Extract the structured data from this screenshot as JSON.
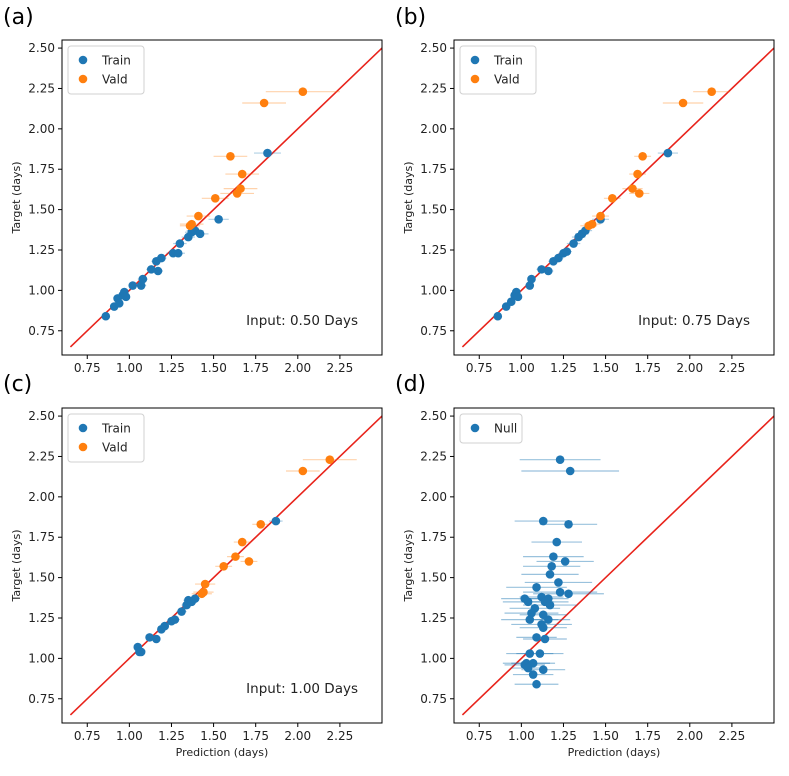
{
  "figure": {
    "colors": {
      "train": "#1f77b4",
      "vald": "#ff7f0e",
      "null": "#1f77b4",
      "identity": "#e8231b",
      "frame": "#000000"
    }
  },
  "chart_data": [
    {
      "type": "scatter",
      "panel_label": "(a)",
      "xlabel": "",
      "ylabel": "Target (days)",
      "xlim": [
        0.6,
        2.5
      ],
      "ylim": [
        0.6,
        2.55
      ],
      "xticks": [
        0.75,
        1.0,
        1.25,
        1.5,
        1.75,
        2.0,
        2.25
      ],
      "yticks": [
        0.75,
        1.0,
        1.25,
        1.5,
        1.75,
        2.0,
        2.25,
        2.5
      ],
      "xtick_labels": [
        "0.75",
        "1.00",
        "1.25",
        "1.50",
        "1.75",
        "2.00",
        "2.25"
      ],
      "ytick_labels": [
        "0.75",
        "1.00",
        "1.25",
        "1.50",
        "1.75",
        "2.00",
        "2.25",
        "2.50"
      ],
      "annotation": "Input: 0.50 Days",
      "identity_line": [
        0.65,
        2.5
      ],
      "legend": [
        "Train",
        "Vald"
      ],
      "legend_position": "top-left",
      "series": [
        {
          "name": "Train",
          "points": [
            [
              0.86,
              0.84,
              0.0
            ],
            [
              0.91,
              0.9,
              0.02
            ],
            [
              0.93,
              0.95,
              0.02
            ],
            [
              0.94,
              0.92,
              0.02
            ],
            [
              0.96,
              0.97,
              0.02
            ],
            [
              0.97,
              0.99,
              0.02
            ],
            [
              0.98,
              0.96,
              0.02
            ],
            [
              1.02,
              1.03,
              0.02
            ],
            [
              1.07,
              1.03,
              0.03
            ],
            [
              1.08,
              1.07,
              0.03
            ],
            [
              1.13,
              1.13,
              0.03
            ],
            [
              1.16,
              1.18,
              0.03
            ],
            [
              1.17,
              1.12,
              0.03
            ],
            [
              1.19,
              1.2,
              0.03
            ],
            [
              1.26,
              1.23,
              0.04
            ],
            [
              1.29,
              1.23,
              0.04
            ],
            [
              1.3,
              1.29,
              0.04
            ],
            [
              1.35,
              1.33,
              0.04
            ],
            [
              1.37,
              1.36,
              0.04
            ],
            [
              1.39,
              1.37,
              0.05
            ],
            [
              1.42,
              1.35,
              0.05
            ],
            [
              1.53,
              1.44,
              0.06
            ],
            [
              1.82,
              1.85,
              0.08
            ]
          ]
        },
        {
          "name": "Vald",
          "points": [
            [
              1.36,
              1.4,
              0.06
            ],
            [
              1.37,
              1.41,
              0.07
            ],
            [
              1.41,
              1.46,
              0.07
            ],
            [
              1.51,
              1.57,
              0.08
            ],
            [
              1.6,
              1.83,
              0.1
            ],
            [
              1.64,
              1.6,
              0.1
            ],
            [
              1.66,
              1.63,
              0.1
            ],
            [
              1.67,
              1.72,
              0.1
            ],
            [
              1.8,
              2.16,
              0.13
            ],
            [
              2.03,
              2.23,
              0.22
            ]
          ]
        }
      ]
    },
    {
      "type": "scatter",
      "panel_label": "(b)",
      "xlabel": "",
      "ylabel": "Target (days)",
      "xlim": [
        0.6,
        2.5
      ],
      "ylim": [
        0.6,
        2.55
      ],
      "xticks": [
        0.75,
        1.0,
        1.25,
        1.5,
        1.75,
        2.0,
        2.25
      ],
      "yticks": [
        0.75,
        1.0,
        1.25,
        1.5,
        1.75,
        2.0,
        2.25,
        2.5
      ],
      "xtick_labels": [
        "0.75",
        "1.00",
        "1.25",
        "1.50",
        "1.75",
        "2.00",
        "2.25"
      ],
      "ytick_labels": [
        "0.75",
        "1.00",
        "1.25",
        "1.50",
        "1.75",
        "2.00",
        "2.25",
        "2.50"
      ],
      "annotation": "Input: 0.75 Days",
      "identity_line": [
        0.65,
        2.5
      ],
      "legend": [
        "Train",
        "Vald"
      ],
      "legend_position": "top-left",
      "series": [
        {
          "name": "Train",
          "points": [
            [
              0.86,
              0.84,
              0.0
            ],
            [
              0.91,
              0.9,
              0.02
            ],
            [
              0.94,
              0.93,
              0.02
            ],
            [
              0.96,
              0.97,
              0.02
            ],
            [
              0.97,
              0.99,
              0.02
            ],
            [
              0.98,
              0.96,
              0.02
            ],
            [
              1.05,
              1.03,
              0.02
            ],
            [
              1.06,
              1.07,
              0.02
            ],
            [
              1.12,
              1.13,
              0.03
            ],
            [
              1.16,
              1.12,
              0.03
            ],
            [
              1.19,
              1.18,
              0.03
            ],
            [
              1.22,
              1.2,
              0.03
            ],
            [
              1.25,
              1.23,
              0.03
            ],
            [
              1.27,
              1.24,
              0.03
            ],
            [
              1.31,
              1.29,
              0.04
            ],
            [
              1.34,
              1.33,
              0.04
            ],
            [
              1.36,
              1.35,
              0.04
            ],
            [
              1.38,
              1.37,
              0.04
            ],
            [
              1.47,
              1.44,
              0.05
            ],
            [
              1.87,
              1.85,
              0.06
            ]
          ]
        },
        {
          "name": "Vald",
          "points": [
            [
              1.4,
              1.4,
              0.05
            ],
            [
              1.42,
              1.41,
              0.05
            ],
            [
              1.47,
              1.46,
              0.05
            ],
            [
              1.54,
              1.57,
              0.05
            ],
            [
              1.66,
              1.63,
              0.06
            ],
            [
              1.69,
              1.72,
              0.05
            ],
            [
              1.7,
              1.6,
              0.06
            ],
            [
              1.72,
              1.83,
              0.05
            ],
            [
              1.96,
              2.16,
              0.12
            ],
            [
              2.13,
              2.23,
              0.11
            ]
          ]
        }
      ]
    },
    {
      "type": "scatter",
      "panel_label": "(c)",
      "xlabel": "Prediction (days)",
      "ylabel": "Target (days)",
      "xlim": [
        0.6,
        2.5
      ],
      "ylim": [
        0.6,
        2.55
      ],
      "xticks": [
        0.75,
        1.0,
        1.25,
        1.5,
        1.75,
        2.0,
        2.25
      ],
      "yticks": [
        0.75,
        1.0,
        1.25,
        1.5,
        1.75,
        2.0,
        2.25,
        2.5
      ],
      "xtick_labels": [
        "0.75",
        "1.00",
        "1.25",
        "1.50",
        "1.75",
        "2.00",
        "2.25"
      ],
      "ytick_labels": [
        "0.75",
        "1.00",
        "1.25",
        "1.50",
        "1.75",
        "2.00",
        "2.25",
        "2.50"
      ],
      "annotation": "Input: 1.00 Days",
      "identity_line": [
        0.65,
        2.5
      ],
      "legend": [
        "Train",
        "Vald"
      ],
      "legend_position": "top-left",
      "series": [
        {
          "name": "Train",
          "points": [
            [
              1.05,
              1.07,
              0.02
            ],
            [
              1.06,
              1.04,
              0.02
            ],
            [
              1.07,
              1.04,
              0.02
            ],
            [
              1.12,
              1.13,
              0.02
            ],
            [
              1.16,
              1.12,
              0.02
            ],
            [
              1.19,
              1.18,
              0.02
            ],
            [
              1.21,
              1.2,
              0.02
            ],
            [
              1.25,
              1.23,
              0.02
            ],
            [
              1.27,
              1.24,
              0.03
            ],
            [
              1.31,
              1.29,
              0.03
            ],
            [
              1.34,
              1.33,
              0.03
            ],
            [
              1.35,
              1.36,
              0.03
            ],
            [
              1.37,
              1.35,
              0.03
            ],
            [
              1.39,
              1.37,
              0.03
            ],
            [
              1.87,
              1.85,
              0.04
            ]
          ]
        },
        {
          "name": "Vald",
          "points": [
            [
              1.43,
              1.4,
              0.06
            ],
            [
              1.44,
              1.41,
              0.06
            ],
            [
              1.45,
              1.46,
              0.06
            ],
            [
              1.56,
              1.57,
              0.05
            ],
            [
              1.63,
              1.63,
              0.05
            ],
            [
              1.67,
              1.72,
              0.05
            ],
            [
              1.71,
              1.6,
              0.05
            ],
            [
              1.78,
              1.83,
              0.05
            ],
            [
              2.03,
              2.16,
              0.1
            ],
            [
              2.19,
              2.23,
              0.16
            ]
          ]
        }
      ]
    },
    {
      "type": "scatter",
      "panel_label": "(d)",
      "xlabel": "Prediction (days)",
      "ylabel": "Target (days)",
      "xlim": [
        0.6,
        2.5
      ],
      "ylim": [
        0.6,
        2.55
      ],
      "xticks": [
        0.75,
        1.0,
        1.25,
        1.5,
        1.75,
        2.0,
        2.25
      ],
      "yticks": [
        0.75,
        1.0,
        1.25,
        1.5,
        1.75,
        2.0,
        2.25,
        2.5
      ],
      "xtick_labels": [
        "0.75",
        "1.00",
        "1.25",
        "1.50",
        "1.75",
        "2.00",
        "2.25"
      ],
      "ytick_labels": [
        "0.75",
        "1.00",
        "1.25",
        "1.50",
        "1.75",
        "2.00",
        "2.25",
        "2.50"
      ],
      "annotation": "",
      "identity_line": [
        0.65,
        2.5
      ],
      "legend": [
        "Null"
      ],
      "legend_position": "top-left",
      "series": [
        {
          "name": "Null",
          "points": [
            [
              1.23,
              2.23,
              0.24
            ],
            [
              1.29,
              2.16,
              0.29
            ],
            [
              1.13,
              1.85,
              0.17
            ],
            [
              1.28,
              1.83,
              0.17
            ],
            [
              1.21,
              1.72,
              0.15
            ],
            [
              1.19,
              1.63,
              0.18
            ],
            [
              1.26,
              1.6,
              0.17
            ],
            [
              1.18,
              1.57,
              0.17
            ],
            [
              1.17,
              1.52,
              0.17
            ],
            [
              1.22,
              1.47,
              0.2
            ],
            [
              1.09,
              1.44,
              0.18
            ],
            [
              1.23,
              1.41,
              0.22
            ],
            [
              1.28,
              1.4,
              0.21
            ],
            [
              1.02,
              1.37,
              0.14
            ],
            [
              1.12,
              1.38,
              0.13
            ],
            [
              1.16,
              1.37,
              0.12
            ],
            [
              1.04,
              1.35,
              0.15
            ],
            [
              1.14,
              1.35,
              0.14
            ],
            [
              1.17,
              1.33,
              0.16
            ],
            [
              1.08,
              1.31,
              0.15
            ],
            [
              1.06,
              1.28,
              0.16
            ],
            [
              1.13,
              1.27,
              0.14
            ],
            [
              1.05,
              1.24,
              0.17
            ],
            [
              1.16,
              1.24,
              0.13
            ],
            [
              1.12,
              1.21,
              0.18
            ],
            [
              1.13,
              1.19,
              0.14
            ],
            [
              1.09,
              1.13,
              0.12
            ],
            [
              1.14,
              1.12,
              0.13
            ],
            [
              1.11,
              1.03,
              0.14
            ],
            [
              1.05,
              1.03,
              0.14
            ],
            [
              1.03,
              0.97,
              0.14
            ],
            [
              1.07,
              0.97,
              0.13
            ],
            [
              1.02,
              0.96,
              0.12
            ],
            [
              1.04,
              0.94,
              0.1
            ],
            [
              1.13,
              0.93,
              0.13
            ],
            [
              1.07,
              0.9,
              0.12
            ],
            [
              1.09,
              0.84,
              0.13
            ]
          ]
        }
      ]
    }
  ]
}
